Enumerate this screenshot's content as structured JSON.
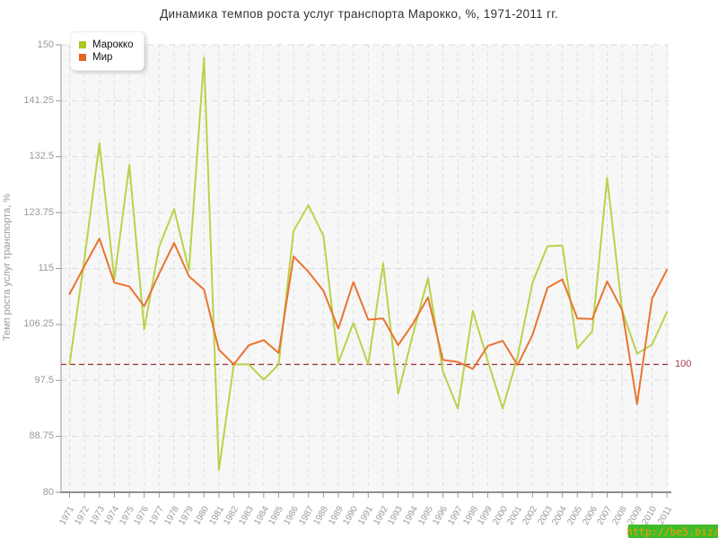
{
  "title": "Динамика темпов роста услуг транспорта Марокко, %, 1971-2011 гг.",
  "y_axis": {
    "label": "Темп роста услуг транспорта, %",
    "ticks": [
      150,
      141.25,
      132.5,
      123.75,
      115,
      106.25,
      97.5,
      88.75,
      80
    ],
    "min": 80,
    "max": 150
  },
  "reference_line": {
    "value": 100,
    "label": "100",
    "color": "#a13d45"
  },
  "legend": [
    {
      "label": "Марокко",
      "color": "#a9c823"
    },
    {
      "label": "Мир",
      "color": "#e2661f"
    }
  ],
  "watermark": {
    "text": "http://be5.biz/",
    "bg": "#3ebc2b",
    "color": "#ff9900"
  },
  "chart_data": {
    "type": "line",
    "x": [
      1971,
      1972,
      1973,
      1974,
      1975,
      1976,
      1977,
      1978,
      1979,
      1980,
      1981,
      1982,
      1983,
      1984,
      1985,
      1986,
      1987,
      1988,
      1989,
      1990,
      1991,
      1992,
      1993,
      1994,
      1995,
      1996,
      1997,
      1998,
      1999,
      2000,
      2001,
      2002,
      2003,
      2004,
      2005,
      2006,
      2007,
      2008,
      2009,
      2010,
      2011
    ],
    "series": [
      {
        "name": "Марокко",
        "color": "#b8d348",
        "values": [
          100,
          116.5,
          134.6,
          113.3,
          131.2,
          105.5,
          118.4,
          124.3,
          114.7,
          148,
          83.5,
          100,
          100,
          97.6,
          100,
          120.9,
          124.9,
          120.1,
          100.3,
          106.5,
          100,
          115.8,
          95.4,
          104.8,
          113.5,
          98.9,
          93.1,
          108.4,
          100.6,
          93.1,
          101.2,
          112.8,
          118.5,
          118.6,
          102.5,
          105.2,
          129.2,
          108.4,
          101.7,
          103.1,
          108.2
        ]
      },
      {
        "name": "Мир",
        "color": "#ea742f",
        "values": [
          111,
          115.4,
          119.7,
          112.8,
          112.2,
          109.1,
          114.2,
          119,
          113.8,
          111.7,
          102.3,
          100,
          103,
          103.8,
          101.8,
          116.9,
          114.5,
          111.5,
          105.6,
          112.9,
          107,
          107.2,
          103,
          106.4,
          110.5,
          100.7,
          100.4,
          99.3,
          102.9,
          103.7,
          99.9,
          104.6,
          112,
          113.3,
          107.2,
          107.1,
          113,
          108.5,
          93.8,
          110.3,
          114.8
        ]
      }
    ],
    "xlabel": "",
    "ylabel": "Темп роста услуг транспорта, %",
    "ylim": [
      80,
      150
    ],
    "grid": true,
    "legend_position": "top-left",
    "reference_value": 100
  }
}
